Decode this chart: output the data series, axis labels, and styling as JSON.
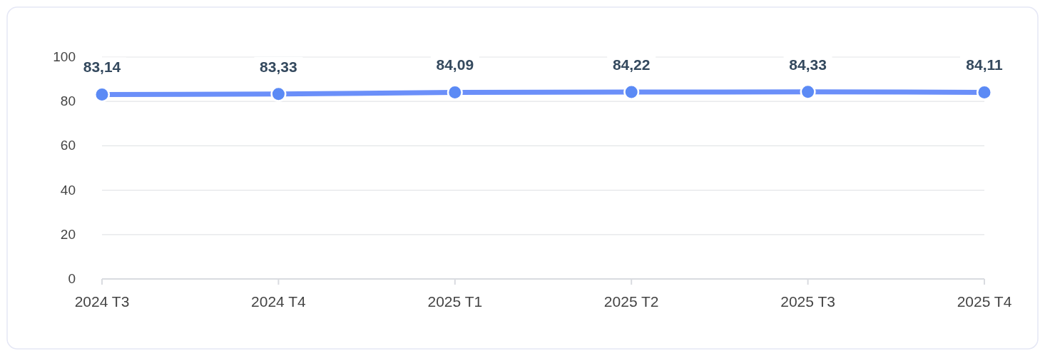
{
  "chart_data": {
    "type": "line",
    "categories": [
      "2024 T3",
      "2024 T4",
      "2025 T1",
      "2025 T2",
      "2025 T3",
      "2025 T4"
    ],
    "series": [
      {
        "color": "#6b8ff9",
        "values": [
          83.14,
          83.33,
          84.09,
          84.22,
          84.33,
          84.11
        ],
        "value_labels": [
          "83,14",
          "83,33",
          "84,09",
          "84,22",
          "84,33",
          "84,11"
        ]
      }
    ],
    "ylim": [
      0,
      100
    ],
    "yticks": [
      0,
      20,
      40,
      60,
      80,
      100
    ],
    "grid": "y",
    "marker": "circle",
    "line_style": "solid"
  }
}
